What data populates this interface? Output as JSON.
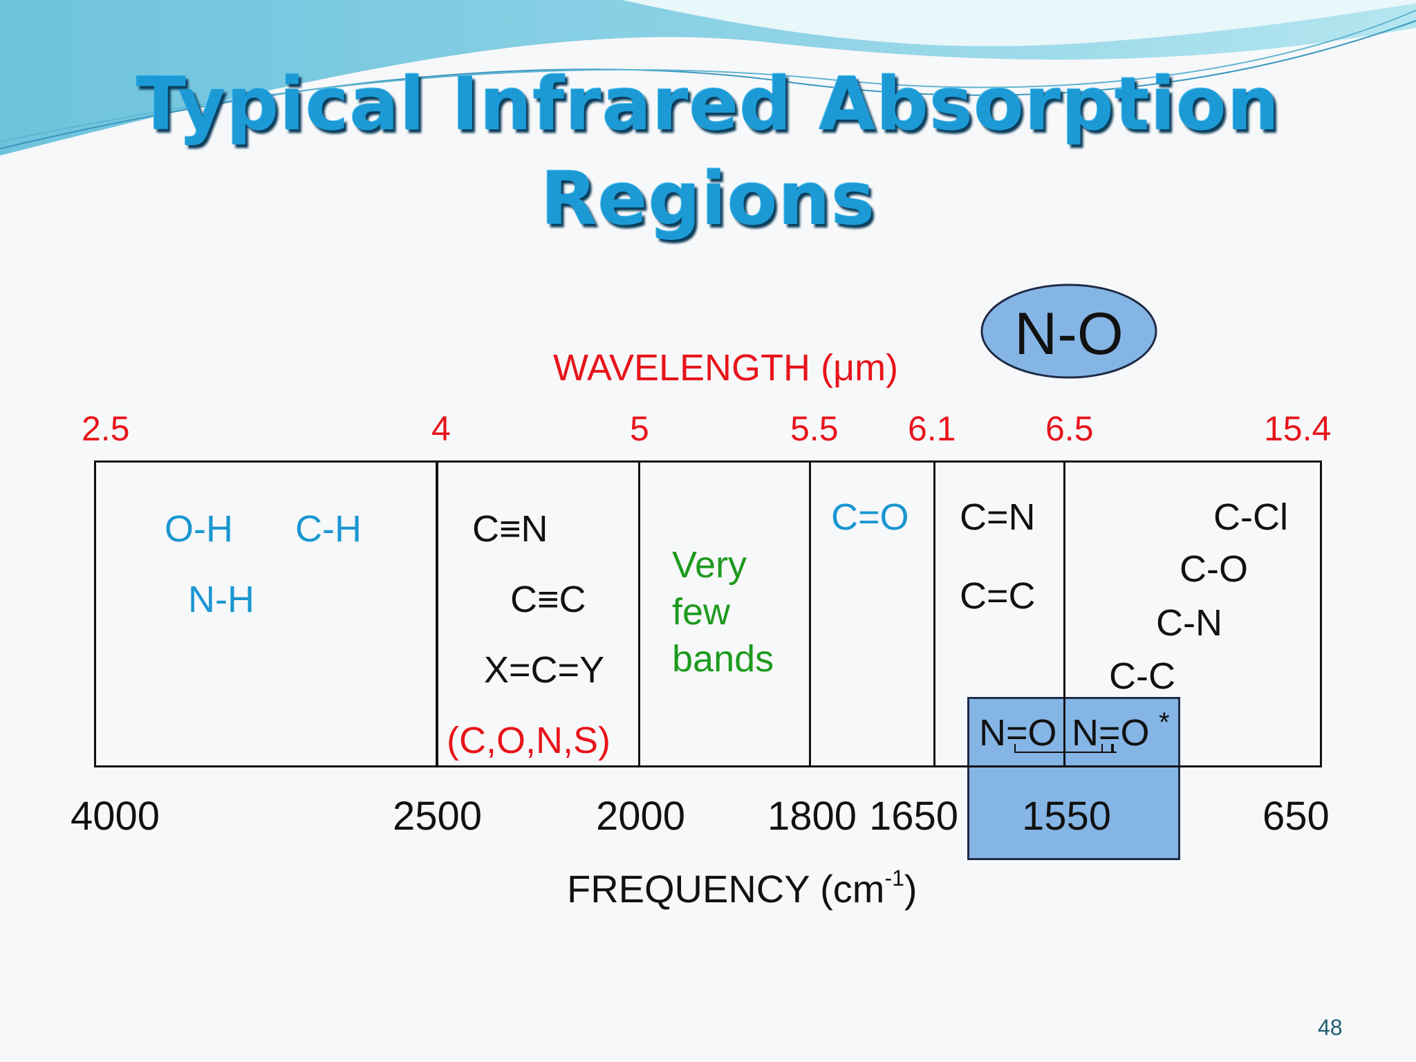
{
  "title": {
    "line1": "Typical Infrared Absorption",
    "line2": "Regions"
  },
  "callout": {
    "label": "N-O"
  },
  "wavelength_axis": {
    "label_pre": "WAVELENGTH (",
    "label_mu": "μ",
    "label_post": "m)",
    "ticks": [
      "2.5",
      "4",
      "5",
      "5.5",
      "6.1",
      "6.5",
      "15.4"
    ]
  },
  "frequency_axis": {
    "label_pre": "FREQUENCY (cm",
    "label_sup": "-1",
    "label_post": ")",
    "ticks": [
      "4000",
      "2500",
      "2000",
      "1800",
      "1650",
      "1550",
      "650"
    ]
  },
  "regions": {
    "r1": {
      "oh": "O-H",
      "ch": "C-H",
      "nh": "N-H"
    },
    "r2": {
      "cn_triple": "C≡N",
      "cc_triple": "C≡C",
      "xcy": "X=C=Y",
      "atoms": "(C,O,N,S)"
    },
    "r3": {
      "line1": "Very",
      "line2": "few",
      "line3": "bands"
    },
    "r4": {
      "co": "C=O"
    },
    "r5": {
      "cn": "C=N",
      "cc": "C=C"
    },
    "r6": {
      "ccl": "C-Cl",
      "co": "C-O",
      "cn": "C-N",
      "cc": "C-C"
    },
    "no_box": {
      "no1": "N=O",
      "no2": "N=O",
      "star": "*"
    }
  },
  "page_number": "48",
  "colors": {
    "title": "#1c9ad6",
    "wavelength": "#e8141b",
    "bond_blue": "#1a96d0",
    "bond_green": "#1e9a1e",
    "highlight": "#85b5e5"
  }
}
